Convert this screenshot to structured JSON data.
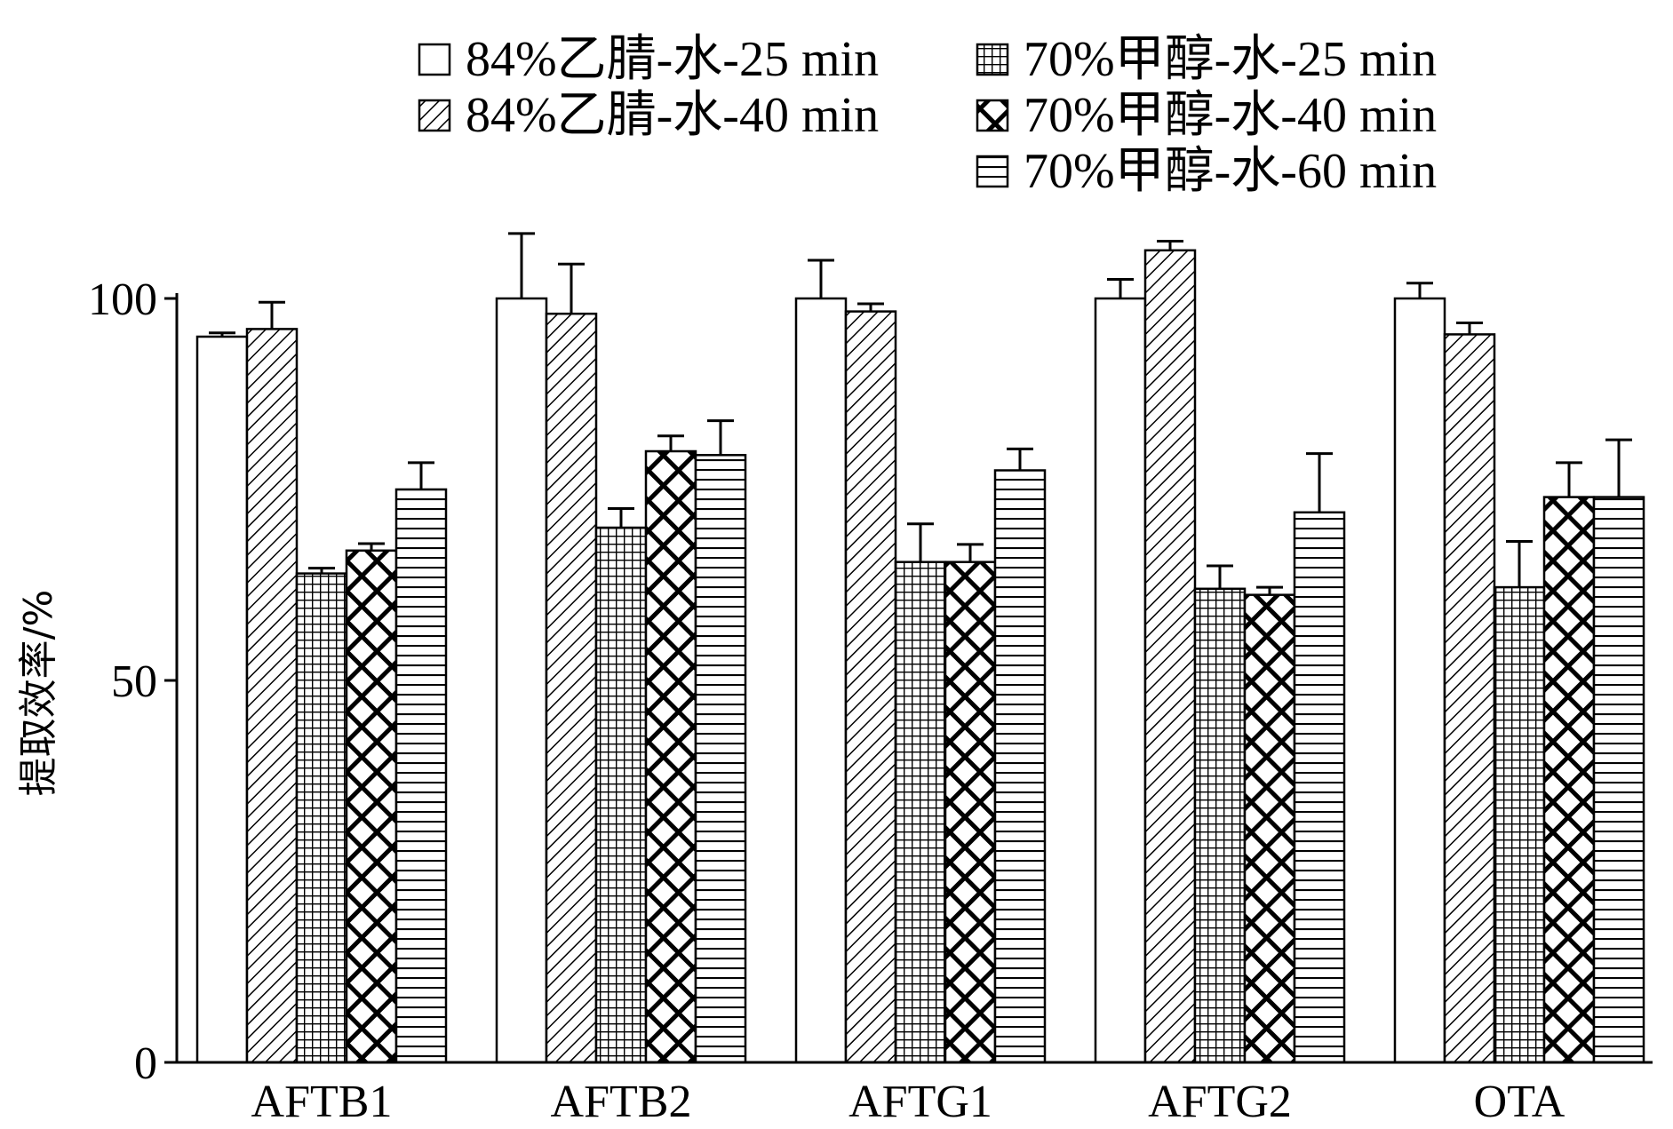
{
  "chart_data": {
    "type": "bar",
    "title": "",
    "xlabel": "",
    "ylabel": "提取效率/%",
    "ylim": [
      0,
      100
    ],
    "yticks": [
      0,
      50,
      100
    ],
    "grid": false,
    "legend_position": "top",
    "categories": [
      "AFTB1",
      "AFTB2",
      "AFTG1",
      "AFTG2",
      "OTA"
    ],
    "series": [
      {
        "name": "84%乙腈-水-25 min",
        "pattern": "blank",
        "values": [
          95,
          100,
          100,
          100,
          100
        ],
        "errors": [
          0.5,
          8.5,
          5,
          2.5,
          2
        ]
      },
      {
        "name": "84%乙腈-水-40 min",
        "pattern": "diagonal",
        "values": [
          96,
          98,
          98.3,
          106.3,
          95.3
        ],
        "errors": [
          3.5,
          6.5,
          1,
          1.2,
          1.5
        ]
      },
      {
        "name": "70%甲醇-水-25 min",
        "pattern": "grid",
        "values": [
          64,
          70,
          65.5,
          62,
          62.2
        ],
        "errors": [
          0.7,
          2.5,
          5,
          3,
          6
        ]
      },
      {
        "name": "70%甲醇-水-40 min",
        "pattern": "crosshatch",
        "values": [
          67,
          80,
          65.5,
          61.2,
          74
        ],
        "errors": [
          0.9,
          2,
          2.3,
          1,
          4.5
        ]
      },
      {
        "name": "70%甲醇-水-60 min",
        "pattern": "horizontal",
        "values": [
          75,
          79.5,
          77.5,
          72,
          74
        ],
        "errors": [
          3.5,
          4.5,
          2.8,
          7.7,
          7.5
        ]
      }
    ],
    "colors": {
      "stroke": "#000000",
      "fill": "#ffffff"
    }
  }
}
